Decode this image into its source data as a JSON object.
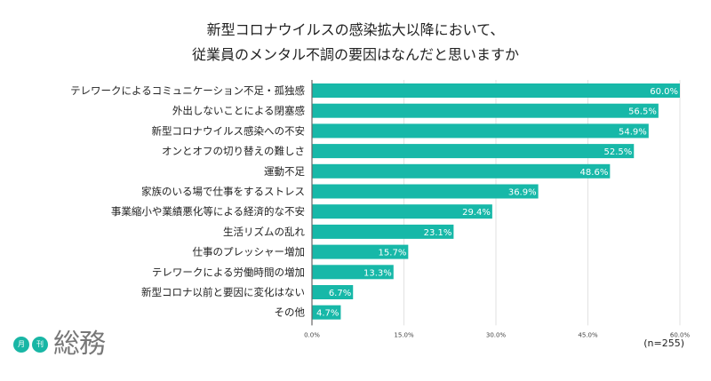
{
  "chart_data": {
    "type": "bar",
    "orientation": "horizontal",
    "title": [
      "新型コロナウイルスの感染拡大以降において、",
      "従業員のメンタル不調の要因はなんだと思いますか"
    ],
    "categories": [
      "テレワークによるコミュニケーション不足・孤独感",
      "外出しないことによる閉塞感",
      "新型コロナウイルス感染への不安",
      "オンとオフの切り替えの難しさ",
      "運動不足",
      "家族のいる場で仕事をするストレス",
      "事業縮小や業績悪化等による経済的な不安",
      "生活リズムの乱れ",
      "仕事のプレッシャー増加",
      "テレワークによる労働時間の増加",
      "新型コロナ以前と要因に変化はない",
      "その他"
    ],
    "values": [
      60.0,
      56.5,
      54.9,
      52.5,
      48.6,
      36.9,
      29.4,
      23.1,
      15.7,
      13.3,
      6.7,
      4.7
    ],
    "xlim": [
      0,
      60
    ],
    "xticks": [
      "0.0%",
      "15.0%",
      "30.0%",
      "45.0%",
      "60.0%"
    ],
    "grid": true,
    "color": "#17b8a8",
    "note": "(n=255)"
  },
  "logo": {
    "circle1": "月",
    "circle2": "刊",
    "text": "総務"
  }
}
